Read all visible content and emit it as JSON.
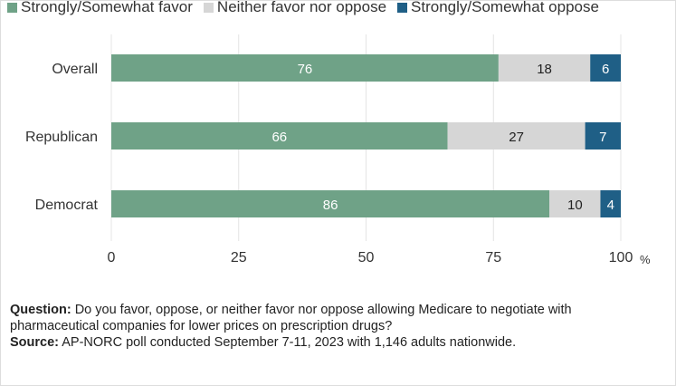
{
  "chart_data": {
    "type": "bar",
    "orientation": "horizontal",
    "stacked": true,
    "categories": [
      "Overall",
      "Republican",
      "Democrat"
    ],
    "series": [
      {
        "name": "Strongly/Somewhat favor",
        "color": "#6fa287",
        "label_color": "#ffffff",
        "values": [
          76,
          66,
          86
        ]
      },
      {
        "name": "Neither favor nor oppose",
        "color": "#d6d6d6",
        "label_color": "#222222",
        "values": [
          18,
          27,
          10
        ]
      },
      {
        "name": "Strongly/Somewhat oppose",
        "color": "#1f5f86",
        "label_color": "#ffffff",
        "values": [
          6,
          7,
          4
        ]
      }
    ],
    "xlim": [
      0,
      100
    ],
    "xticks": [
      0,
      25,
      50,
      75,
      100
    ],
    "xticklabels": [
      "0",
      "25",
      "50",
      "75",
      "100"
    ],
    "x_unit": "%",
    "grid": "vertical",
    "legend_position": "top"
  },
  "notes": {
    "question_label": "Question:",
    "question_text": " Do you favor, oppose, or neither favor nor oppose allowing Medicare to negotiate with pharmaceutical companies for lower prices on prescription drugs?",
    "source_label": "Source:",
    "source_text": " AP-NORC poll conducted September 7-11, 2023 with 1,146 adults nationwide."
  }
}
